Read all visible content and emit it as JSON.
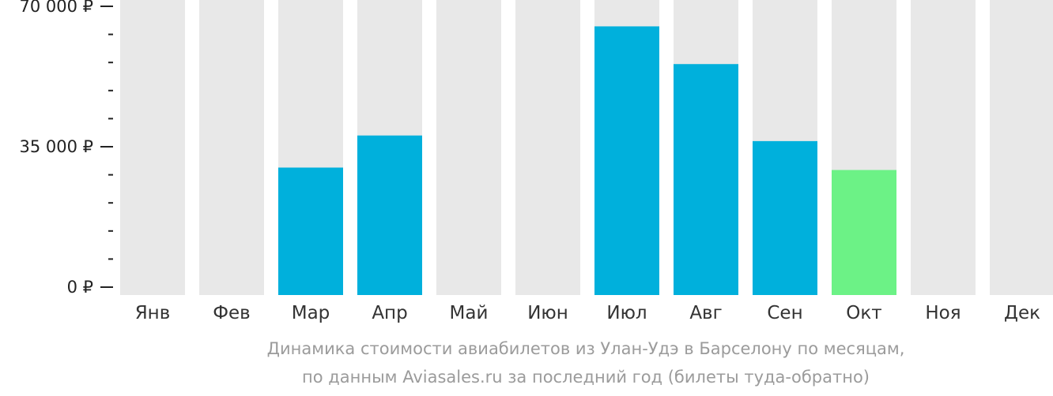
{
  "chart_data": {
    "type": "bar",
    "categories": [
      "Янв",
      "Фев",
      "Мар",
      "Апр",
      "Май",
      "Июн",
      "Июл",
      "Авг",
      "Сен",
      "Окт",
      "Ноя",
      "Дек"
    ],
    "values": [
      null,
      null,
      29800,
      37800,
      null,
      null,
      65000,
      55600,
      36400,
      29200,
      null,
      null
    ],
    "highlight_index": 9,
    "ylim": [
      0,
      70000
    ],
    "yticks": [
      {
        "value": 0,
        "label": "0 ₽"
      },
      {
        "value": 35000,
        "label": "35 000 ₽"
      },
      {
        "value": 70000,
        "label": "70 000 ₽"
      }
    ],
    "minor_tick_step": 7000,
    "colors": {
      "bar": "#00b0dc",
      "highlight": "#6cf286",
      "background_bar": "#e8e8e8",
      "axis": "#222222"
    }
  },
  "caption": {
    "line1": "Динамика стоимости авиабилетов из Улан-Удэ в Барселону по месяцам,",
    "line2": "по данным Aviasales.ru за последний год (билеты туда-обратно)"
  }
}
